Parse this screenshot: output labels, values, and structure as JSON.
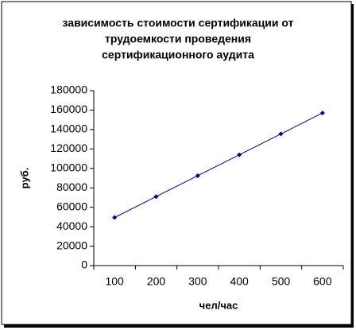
{
  "chart_data": {
    "type": "line",
    "title": [
      "зависимость стоимости сертификации  от",
      "трудоемкости проведения",
      "сертификационного аудита"
    ],
    "x_label": "чел/час",
    "y_label": "руб.",
    "categories": [
      "100",
      "200",
      "300",
      "400",
      "500",
      "600"
    ],
    "series": [
      {
        "color": "#000080",
        "values": [
          49500,
          71000,
          92500,
          114000,
          135500,
          157000
        ]
      }
    ],
    "ylim": [
      0,
      180000
    ],
    "yticks": [
      0,
      20000,
      40000,
      60000,
      80000,
      100000,
      120000,
      140000,
      160000,
      180000
    ]
  }
}
